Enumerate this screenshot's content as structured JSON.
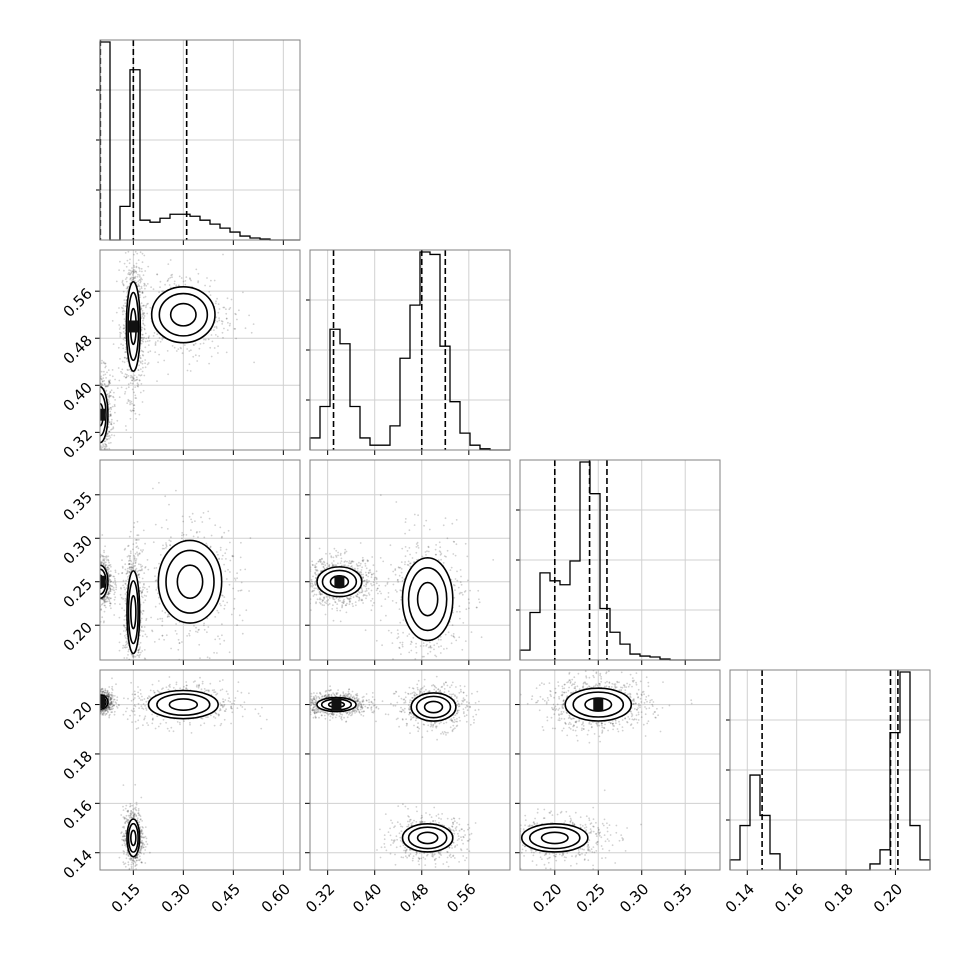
{
  "chart_data": {
    "type": "corner",
    "title": "",
    "grid": true,
    "parameters": [
      {
        "index": 0,
        "range": [
          0.05,
          0.65
        ],
        "ticks": [
          "0.15",
          "0.30",
          "0.45",
          "0.60"
        ],
        "tick_values": [
          0.15,
          0.3,
          0.45,
          0.6
        ],
        "quantiles": [
          0.051,
          0.15,
          0.31
        ]
      },
      {
        "index": 1,
        "range": [
          0.29,
          0.63
        ],
        "ticks": [
          "0.32",
          "0.40",
          "0.48",
          "0.56"
        ],
        "tick_values": [
          0.32,
          0.4,
          0.48,
          0.56
        ],
        "quantiles": [
          0.33,
          0.48,
          0.52
        ]
      },
      {
        "index": 2,
        "range": [
          0.16,
          0.39
        ],
        "ticks": [
          "0.20",
          "0.25",
          "0.30",
          "0.35"
        ],
        "tick_values": [
          0.2,
          0.25,
          0.3,
          0.35
        ],
        "quantiles": [
          0.2,
          0.24,
          0.26
        ]
      },
      {
        "index": 3,
        "range": [
          0.133,
          0.214
        ],
        "ticks": [
          "0.14",
          "0.16",
          "0.18",
          "0.20"
        ],
        "tick_values": [
          0.14,
          0.16,
          0.18,
          0.2
        ],
        "quantiles": [
          0.146,
          0.198,
          0.201
        ]
      }
    ],
    "histograms": [
      {
        "param": 0,
        "counts": [
          100,
          0,
          17,
          86,
          10,
          9,
          11,
          13,
          13,
          12,
          10,
          8,
          6,
          4,
          2,
          1,
          0.5,
          0,
          0,
          0
        ]
      },
      {
        "param": 1,
        "counts": [
          5,
          18,
          50,
          44,
          18,
          5,
          2,
          2,
          10,
          38,
          60,
          82,
          81,
          43,
          20,
          7,
          2,
          0.5,
          0,
          0
        ]
      },
      {
        "param": 2,
        "counts": [
          5,
          24,
          44,
          40,
          38,
          50,
          100,
          84,
          26,
          14,
          8,
          3,
          2,
          1.5,
          0.5,
          0,
          0,
          0,
          0,
          0
        ]
      },
      {
        "param": 3,
        "counts": [
          5,
          22,
          47,
          27,
          8,
          0,
          0,
          0,
          0,
          0,
          0,
          0,
          0,
          0,
          3,
          10,
          68,
          98,
          22,
          5
        ]
      }
    ],
    "blobs": [
      {
        "panel": [
          1,
          0
        ],
        "components": [
          {
            "cx": 0.05,
            "cy": 0.35,
            "rx": 0.025,
            "ry": 0.05,
            "weight": 1.0
          },
          {
            "cx": 0.15,
            "cy": 0.5,
            "rx": 0.022,
            "ry": 0.08,
            "weight": 0.9
          },
          {
            "cx": 0.3,
            "cy": 0.52,
            "rx": 0.1,
            "ry": 0.05,
            "weight": 0.5
          }
        ]
      },
      {
        "panel": [
          2,
          0
        ],
        "components": [
          {
            "cx": 0.05,
            "cy": 0.25,
            "rx": 0.025,
            "ry": 0.02,
            "weight": 1.0
          },
          {
            "cx": 0.15,
            "cy": 0.215,
            "rx": 0.02,
            "ry": 0.05,
            "weight": 0.8
          },
          {
            "cx": 0.32,
            "cy": 0.25,
            "rx": 0.1,
            "ry": 0.05,
            "weight": 0.5
          }
        ]
      },
      {
        "panel": [
          2,
          1
        ],
        "components": [
          {
            "cx": 0.34,
            "cy": 0.25,
            "rx": 0.04,
            "ry": 0.018,
            "weight": 1.0
          },
          {
            "cx": 0.49,
            "cy": 0.23,
            "rx": 0.045,
            "ry": 0.05,
            "weight": 0.6
          }
        ]
      },
      {
        "panel": [
          3,
          0
        ],
        "components": [
          {
            "cx": 0.05,
            "cy": 0.201,
            "rx": 0.025,
            "ry": 0.003,
            "weight": 1.0
          },
          {
            "cx": 0.3,
            "cy": 0.2,
            "rx": 0.11,
            "ry": 0.006,
            "weight": 0.6
          },
          {
            "cx": 0.15,
            "cy": 0.146,
            "rx": 0.02,
            "ry": 0.008,
            "weight": 0.7
          }
        ]
      },
      {
        "panel": [
          3,
          1
        ],
        "components": [
          {
            "cx": 0.335,
            "cy": 0.2,
            "rx": 0.035,
            "ry": 0.003,
            "weight": 1.0
          },
          {
            "cx": 0.5,
            "cy": 0.199,
            "rx": 0.04,
            "ry": 0.006,
            "weight": 0.6
          },
          {
            "cx": 0.49,
            "cy": 0.146,
            "rx": 0.045,
            "ry": 0.006,
            "weight": 0.6
          }
        ]
      },
      {
        "panel": [
          3,
          2
        ],
        "components": [
          {
            "cx": 0.25,
            "cy": 0.2,
            "rx": 0.04,
            "ry": 0.007,
            "weight": 1.0
          },
          {
            "cx": 0.2,
            "cy": 0.146,
            "rx": 0.04,
            "ry": 0.006,
            "weight": 0.7
          }
        ]
      }
    ]
  }
}
